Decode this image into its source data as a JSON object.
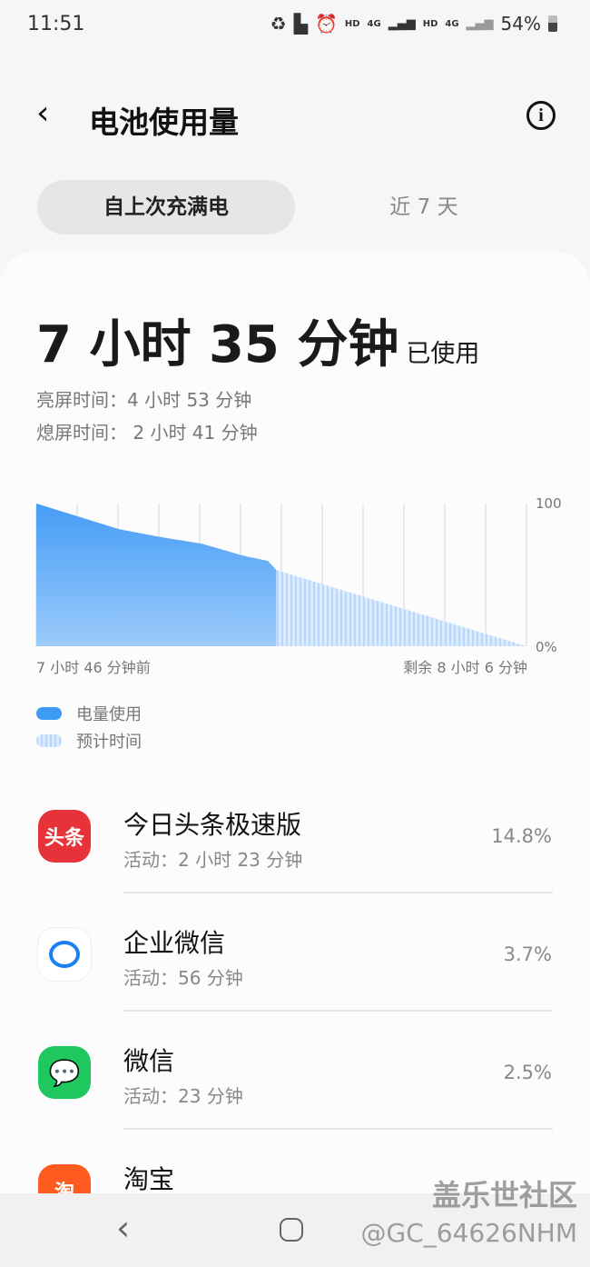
{
  "status_bar": {
    "time": "11:51",
    "hd1": "HD",
    "net1": "4G",
    "hd2": "HD",
    "net2": "4G",
    "battery": "54%"
  },
  "header": {
    "title": "电池使用量",
    "back_icon": "chevron-left-icon",
    "info_icon": "info-icon"
  },
  "tabs": [
    {
      "label": "自上次充满电",
      "selected": true
    },
    {
      "label": "近 7 天",
      "selected": false
    }
  ],
  "summary": {
    "used_time": "7 小时 35 分钟",
    "used_suffix": "已使用",
    "screen_on": "亮屏时间：4 小时 53 分钟",
    "screen_off": "熄屏时间： 2 小时 41 分钟"
  },
  "chart_data": {
    "type": "area",
    "x_unit": "hours since full charge",
    "xlim": [
      0,
      15.87
    ],
    "ylim": [
      0,
      100
    ],
    "y_tick_labels": [
      "100",
      "0%"
    ],
    "x_start_label": "7 小时 46 分钟前",
    "x_end_label": "剩余 8 小时 6 分钟",
    "grid": "vertical",
    "series": [
      {
        "name": "电量使用",
        "color": "#4a9ff5",
        "x": [
          0,
          2.7,
          4.0,
          5.35,
          6.71,
          7.5,
          7.77
        ],
        "y": [
          100,
          81.9,
          76.6,
          71.9,
          63.4,
          59.8,
          53.4
        ]
      },
      {
        "name": "预计时间",
        "color": "#c8e0fb",
        "x": [
          7.77,
          15.87
        ],
        "y": [
          53.4,
          0
        ]
      }
    ]
  },
  "apps": [
    {
      "name": "今日头条极速版",
      "activity": "活动：2 小时 23 分钟",
      "percent": "14.8%",
      "icon": "toutiao-icon",
      "icon_text": "头条",
      "color": "#e8323a"
    },
    {
      "name": "企业微信",
      "activity": "活动：56 分钟",
      "percent": "3.7%",
      "icon": "wecom-icon",
      "icon_text": "",
      "color": "#ffffff"
    },
    {
      "name": "微信",
      "activity": "活动：23 分钟",
      "percent": "2.5%",
      "icon": "wechat-icon",
      "icon_text": "",
      "color": "#1fc75f"
    },
    {
      "name": "淘宝",
      "activity": "",
      "percent": "",
      "icon": "taobao-icon",
      "icon_text": "淘",
      "color": "#ff5a1f"
    }
  ],
  "watermark": {
    "line1": "盖乐世社区",
    "line2": "@GC_64626NHM"
  }
}
